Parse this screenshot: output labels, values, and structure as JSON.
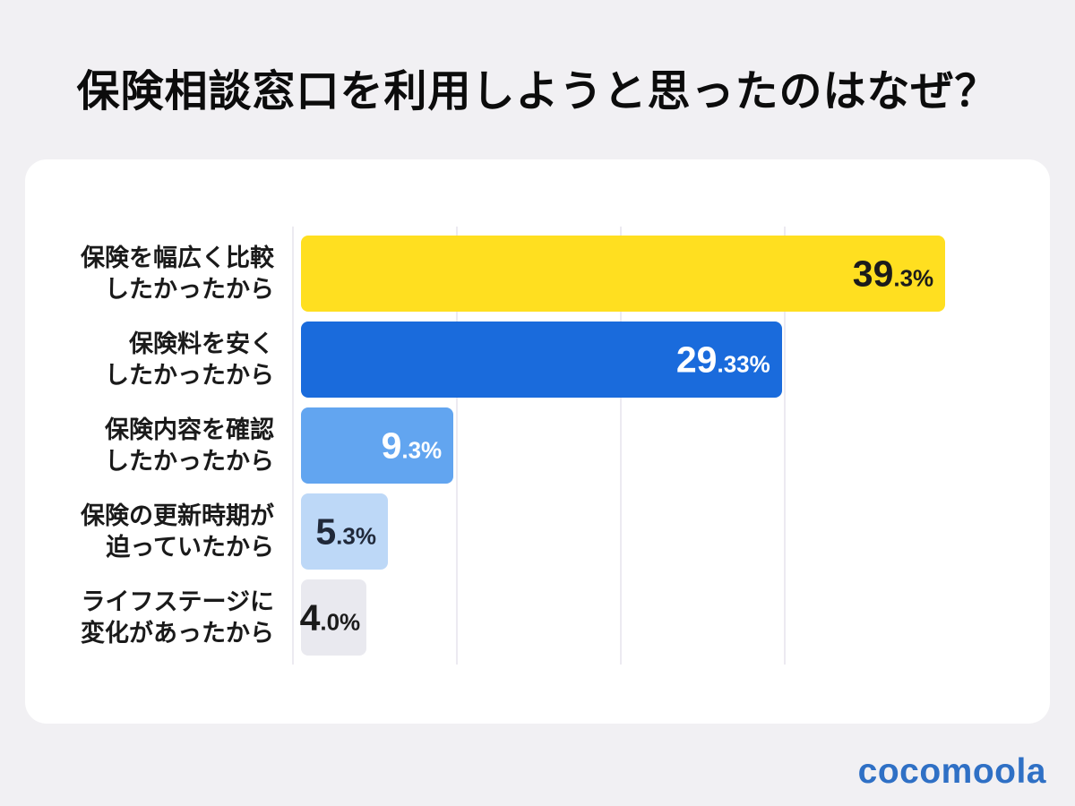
{
  "page": {
    "title": "保険相談窓口を利用しようと思ったのはなぜ？",
    "background_color": "#f1f0f3",
    "panel_color": "#ffffff",
    "logo_text": "cocomoola",
    "logo_color": "#2f70c5"
  },
  "chart_data": {
    "type": "bar",
    "orientation": "horizontal",
    "title": "保険相談窓口を利用しようと思ったのはなぜ？",
    "unit": "%",
    "xlim": [
      0,
      40
    ],
    "gridlines_percent": [
      0,
      10,
      20,
      30
    ],
    "grid_on": true,
    "grid_color": "#eceaf1",
    "legend": "none",
    "categories": [
      "保険を幅広く比較したかったから",
      "保険料を安くしたかったから",
      "保険内容を確認したかったから",
      "保険の更新時期が迫っていたから",
      "ライフステージに変化があったから"
    ],
    "values": [
      39.3,
      29.33,
      9.3,
      5.3,
      4.0
    ],
    "items": [
      {
        "label_lines": "保険を幅広く比較\nしたかったから",
        "value": 39.3,
        "value_int": "39",
        "value_frac": ".3%",
        "bar_color": "#ffdf20",
        "value_color": "#1b1b1b"
      },
      {
        "label_lines": "保険料を安く\nしたかったから",
        "value": 29.33,
        "value_int": "29",
        "value_frac": ".33%",
        "bar_color": "#1a6bdc",
        "value_color": "#ffffff"
      },
      {
        "label_lines": "保険内容を確認\nしたかったから",
        "value": 9.3,
        "value_int": "9",
        "value_frac": ".3%",
        "bar_color": "#62a5f0",
        "value_color": "#ffffff"
      },
      {
        "label_lines": "保険の更新時期が\n迫っていたから",
        "value": 5.3,
        "value_int": "5",
        "value_frac": ".3%",
        "bar_color": "#bdd8f7",
        "value_color": "#20293a"
      },
      {
        "label_lines": "ライフステージに\n変化があったから",
        "value": 4.0,
        "value_int": "4",
        "value_frac": ".0%",
        "bar_color": "#e9e9ef",
        "value_color": "#1b1b1b"
      }
    ]
  }
}
